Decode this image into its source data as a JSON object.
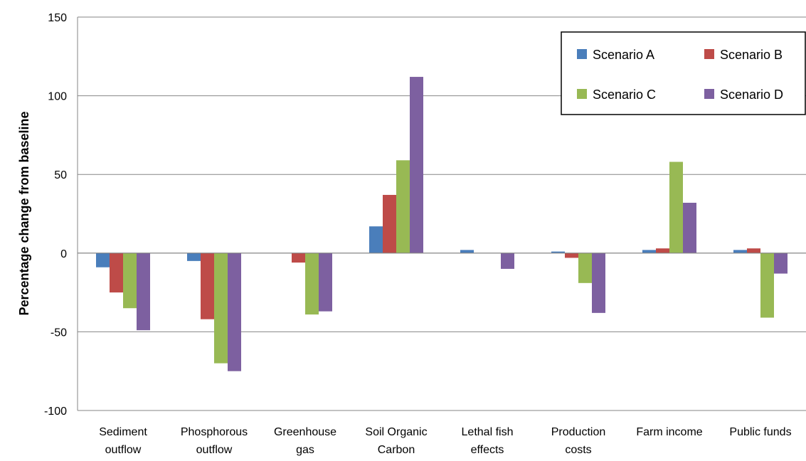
{
  "chart_data": {
    "type": "bar",
    "title": "",
    "xlabel": "",
    "ylabel": "Percentage change from baseline",
    "ylim": [
      -100,
      150
    ],
    "yticks": [
      -100,
      -50,
      0,
      50,
      100,
      150
    ],
    "grid": "horizontal",
    "legend_position": "top-right",
    "categories": [
      [
        "Sediment",
        "outflow"
      ],
      [
        "Phosphorous",
        "outflow"
      ],
      [
        "Greenhouse",
        "gas"
      ],
      [
        "Soil Organic",
        "Carbon"
      ],
      [
        "Lethal fish",
        "effects"
      ],
      [
        "Production",
        "costs"
      ],
      [
        "Farm income"
      ],
      [
        "Public funds"
      ]
    ],
    "series": [
      {
        "name": "Scenario A",
        "color": "#4a7ebb",
        "values": [
          -9,
          -5,
          0,
          17,
          2,
          1,
          2,
          2
        ]
      },
      {
        "name": "Scenario B",
        "color": "#be4b48",
        "values": [
          -25,
          -42,
          -6,
          37,
          0,
          -3,
          3,
          3
        ]
      },
      {
        "name": "Scenario C",
        "color": "#98b954",
        "values": [
          -35,
          -70,
          -39,
          59,
          0,
          -19,
          58,
          -41
        ]
      },
      {
        "name": "Scenario D",
        "color": "#7d60a0",
        "values": [
          -49,
          -75,
          -37,
          112,
          -10,
          -38,
          32,
          -13
        ]
      }
    ]
  }
}
